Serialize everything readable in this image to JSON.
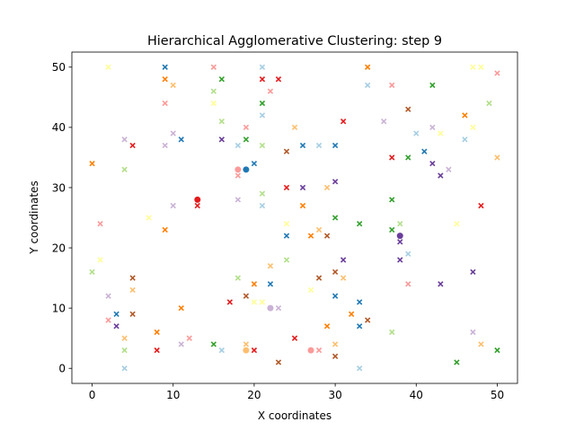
{
  "chart_data": {
    "type": "scatter",
    "title": "Hierarchical Agglomerative Clustering: step 9",
    "xlabel": "X coordinates",
    "ylabel": "Y coordinates",
    "xlim": [
      -2.5,
      52.5
    ],
    "ylim": [
      -2.5,
      52.5
    ],
    "xticks": [
      0,
      10,
      20,
      30,
      40,
      50
    ],
    "yticks": [
      0,
      10,
      20,
      30,
      40,
      50
    ],
    "grid": false,
    "legend": "none",
    "colors": {
      "blue": "#1f78b4",
      "lightblue": "#a6cee3",
      "green": "#33a02c",
      "lightgreen": "#b2df8a",
      "red": "#e31a1c",
      "pink": "#fb9a99",
      "orange": "#ff7f00",
      "lightorange": "#fdbf6f",
      "purple": "#6a3d9a",
      "lavender": "#cab2d6",
      "yellow": "#ffff99",
      "brown": "#b15928"
    },
    "cross_points": [
      {
        "x": 2,
        "y": 50,
        "c": "yellow"
      },
      {
        "x": 9,
        "y": 50,
        "c": "blue"
      },
      {
        "x": 15,
        "y": 50,
        "c": "pink"
      },
      {
        "x": 21,
        "y": 50,
        "c": "lightblue"
      },
      {
        "x": 34,
        "y": 50,
        "c": "orange"
      },
      {
        "x": 47,
        "y": 50,
        "c": "yellow"
      },
      {
        "x": 48,
        "y": 50,
        "c": "yellow"
      },
      {
        "x": 50,
        "y": 49,
        "c": "pink"
      },
      {
        "x": 9,
        "y": 48,
        "c": "orange"
      },
      {
        "x": 16,
        "y": 48,
        "c": "green"
      },
      {
        "x": 21,
        "y": 48,
        "c": "red"
      },
      {
        "x": 23,
        "y": 48,
        "c": "red"
      },
      {
        "x": 10,
        "y": 47,
        "c": "lightorange"
      },
      {
        "x": 34,
        "y": 47,
        "c": "lightblue"
      },
      {
        "x": 37,
        "y": 47,
        "c": "pink"
      },
      {
        "x": 42,
        "y": 47,
        "c": "green"
      },
      {
        "x": 15,
        "y": 46,
        "c": "lightgreen"
      },
      {
        "x": 22,
        "y": 46,
        "c": "pink"
      },
      {
        "x": 9,
        "y": 44,
        "c": "pink"
      },
      {
        "x": 15,
        "y": 44,
        "c": "yellow"
      },
      {
        "x": 21,
        "y": 44,
        "c": "green"
      },
      {
        "x": 49,
        "y": 44,
        "c": "lightgreen"
      },
      {
        "x": 39,
        "y": 43,
        "c": "brown"
      },
      {
        "x": 21,
        "y": 42,
        "c": "lightblue"
      },
      {
        "x": 46,
        "y": 42,
        "c": "orange"
      },
      {
        "x": 16,
        "y": 41,
        "c": "lightgreen"
      },
      {
        "x": 31,
        "y": 41,
        "c": "red"
      },
      {
        "x": 36,
        "y": 41,
        "c": "lavender"
      },
      {
        "x": 19,
        "y": 40,
        "c": "pink"
      },
      {
        "x": 25,
        "y": 40,
        "c": "lightorange"
      },
      {
        "x": 42,
        "y": 40,
        "c": "lavender"
      },
      {
        "x": 47,
        "y": 40,
        "c": "yellow"
      },
      {
        "x": 10,
        "y": 39,
        "c": "lavender"
      },
      {
        "x": 40,
        "y": 39,
        "c": "lightblue"
      },
      {
        "x": 43,
        "y": 39,
        "c": "yellow"
      },
      {
        "x": 4,
        "y": 38,
        "c": "lavender"
      },
      {
        "x": 11,
        "y": 38,
        "c": "blue"
      },
      {
        "x": 16,
        "y": 38,
        "c": "purple"
      },
      {
        "x": 19,
        "y": 38,
        "c": "green"
      },
      {
        "x": 46,
        "y": 38,
        "c": "lightblue"
      },
      {
        "x": 5,
        "y": 37,
        "c": "red"
      },
      {
        "x": 9,
        "y": 37,
        "c": "lavender"
      },
      {
        "x": 18,
        "y": 37,
        "c": "lightblue"
      },
      {
        "x": 21,
        "y": 37,
        "c": "lightgreen"
      },
      {
        "x": 26,
        "y": 37,
        "c": "blue"
      },
      {
        "x": 28,
        "y": 37,
        "c": "lightblue"
      },
      {
        "x": 30,
        "y": 37,
        "c": "blue"
      },
      {
        "x": 24,
        "y": 36,
        "c": "brown"
      },
      {
        "x": 41,
        "y": 36,
        "c": "blue"
      },
      {
        "x": 37,
        "y": 35,
        "c": "red"
      },
      {
        "x": 39,
        "y": 35,
        "c": "green"
      },
      {
        "x": 50,
        "y": 35,
        "c": "lightorange"
      },
      {
        "x": 0,
        "y": 34,
        "c": "orange"
      },
      {
        "x": 20,
        "y": 34,
        "c": "blue"
      },
      {
        "x": 42,
        "y": 34,
        "c": "purple"
      },
      {
        "x": 4,
        "y": 33,
        "c": "lightgreen"
      },
      {
        "x": 44,
        "y": 33,
        "c": "lavender"
      },
      {
        "x": 18,
        "y": 32,
        "c": "pink"
      },
      {
        "x": 43,
        "y": 32,
        "c": "purple"
      },
      {
        "x": 30,
        "y": 31,
        "c": "purple"
      },
      {
        "x": 24,
        "y": 30,
        "c": "red"
      },
      {
        "x": 26,
        "y": 30,
        "c": "purple"
      },
      {
        "x": 29,
        "y": 30,
        "c": "lightorange"
      },
      {
        "x": 21,
        "y": 29,
        "c": "lightgreen"
      },
      {
        "x": 18,
        "y": 28,
        "c": "lavender"
      },
      {
        "x": 37,
        "y": 28,
        "c": "green"
      },
      {
        "x": 10,
        "y": 27,
        "c": "lavender"
      },
      {
        "x": 13,
        "y": 27,
        "c": "red"
      },
      {
        "x": 21,
        "y": 27,
        "c": "lightblue"
      },
      {
        "x": 26,
        "y": 27,
        "c": "orange"
      },
      {
        "x": 48,
        "y": 27,
        "c": "red"
      },
      {
        "x": 7,
        "y": 25,
        "c": "yellow"
      },
      {
        "x": 30,
        "y": 25,
        "c": "green"
      },
      {
        "x": 1,
        "y": 24,
        "c": "pink"
      },
      {
        "x": 24,
        "y": 24,
        "c": "yellow"
      },
      {
        "x": 33,
        "y": 24,
        "c": "green"
      },
      {
        "x": 38,
        "y": 24,
        "c": "lightgreen"
      },
      {
        "x": 45,
        "y": 24,
        "c": "yellow"
      },
      {
        "x": 9,
        "y": 23,
        "c": "orange"
      },
      {
        "x": 28,
        "y": 23,
        "c": "lightorange"
      },
      {
        "x": 37,
        "y": 23,
        "c": "green"
      },
      {
        "x": 24,
        "y": 22,
        "c": "blue"
      },
      {
        "x": 27,
        "y": 22,
        "c": "orange"
      },
      {
        "x": 29,
        "y": 22,
        "c": "brown"
      },
      {
        "x": 38,
        "y": 21,
        "c": "purple"
      },
      {
        "x": 39,
        "y": 19,
        "c": "lightblue"
      },
      {
        "x": 1,
        "y": 18,
        "c": "yellow"
      },
      {
        "x": 24,
        "y": 18,
        "c": "lightgreen"
      },
      {
        "x": 31,
        "y": 18,
        "c": "purple"
      },
      {
        "x": 38,
        "y": 18,
        "c": "purple"
      },
      {
        "x": 22,
        "y": 17,
        "c": "lightorange"
      },
      {
        "x": 0,
        "y": 16,
        "c": "lightgreen"
      },
      {
        "x": 30,
        "y": 16,
        "c": "brown"
      },
      {
        "x": 47,
        "y": 16,
        "c": "purple"
      },
      {
        "x": 5,
        "y": 15,
        "c": "brown"
      },
      {
        "x": 18,
        "y": 15,
        "c": "lightgreen"
      },
      {
        "x": 28,
        "y": 15,
        "c": "brown"
      },
      {
        "x": 31,
        "y": 15,
        "c": "lightorange"
      },
      {
        "x": 20,
        "y": 14,
        "c": "orange"
      },
      {
        "x": 22,
        "y": 14,
        "c": "blue"
      },
      {
        "x": 39,
        "y": 14,
        "c": "pink"
      },
      {
        "x": 43,
        "y": 14,
        "c": "purple"
      },
      {
        "x": 5,
        "y": 13,
        "c": "lightorange"
      },
      {
        "x": 27,
        "y": 13,
        "c": "yellow"
      },
      {
        "x": 2,
        "y": 12,
        "c": "lavender"
      },
      {
        "x": 19,
        "y": 12,
        "c": "brown"
      },
      {
        "x": 30,
        "y": 12,
        "c": "blue"
      },
      {
        "x": 17,
        "y": 11,
        "c": "red"
      },
      {
        "x": 20,
        "y": 11,
        "c": "yellow"
      },
      {
        "x": 21,
        "y": 11,
        "c": "yellow"
      },
      {
        "x": 33,
        "y": 11,
        "c": "blue"
      },
      {
        "x": 11,
        "y": 10,
        "c": "orange"
      },
      {
        "x": 23,
        "y": 10,
        "c": "lavender"
      },
      {
        "x": 3,
        "y": 9,
        "c": "blue"
      },
      {
        "x": 5,
        "y": 9,
        "c": "brown"
      },
      {
        "x": 32,
        "y": 9,
        "c": "orange"
      },
      {
        "x": 2,
        "y": 8,
        "c": "pink"
      },
      {
        "x": 34,
        "y": 8,
        "c": "brown"
      },
      {
        "x": 3,
        "y": 7,
        "c": "purple"
      },
      {
        "x": 29,
        "y": 7,
        "c": "orange"
      },
      {
        "x": 33,
        "y": 7,
        "c": "blue"
      },
      {
        "x": 8,
        "y": 6,
        "c": "orange"
      },
      {
        "x": 37,
        "y": 6,
        "c": "lightgreen"
      },
      {
        "x": 47,
        "y": 6,
        "c": "lavender"
      },
      {
        "x": 4,
        "y": 5,
        "c": "lightorange"
      },
      {
        "x": 12,
        "y": 5,
        "c": "pink"
      },
      {
        "x": 25,
        "y": 5,
        "c": "red"
      },
      {
        "x": 11,
        "y": 4,
        "c": "lavender"
      },
      {
        "x": 15,
        "y": 4,
        "c": "green"
      },
      {
        "x": 19,
        "y": 4,
        "c": "lightorange"
      },
      {
        "x": 30,
        "y": 4,
        "c": "lightorange"
      },
      {
        "x": 48,
        "y": 4,
        "c": "lightorange"
      },
      {
        "x": 4,
        "y": 3,
        "c": "lightgreen"
      },
      {
        "x": 8,
        "y": 3,
        "c": "red"
      },
      {
        "x": 16,
        "y": 3,
        "c": "lightblue"
      },
      {
        "x": 20,
        "y": 3,
        "c": "red"
      },
      {
        "x": 28,
        "y": 3,
        "c": "pink"
      },
      {
        "x": 50,
        "y": 3,
        "c": "green"
      },
      {
        "x": 30,
        "y": 2,
        "c": "brown"
      },
      {
        "x": 23,
        "y": 1,
        "c": "brown"
      },
      {
        "x": 45,
        "y": 1,
        "c": "green"
      },
      {
        "x": 4,
        "y": 0,
        "c": "lightblue"
      },
      {
        "x": 33,
        "y": 0,
        "c": "lightblue"
      }
    ],
    "dot_points": [
      {
        "x": 13,
        "y": 28,
        "c": "red"
      },
      {
        "x": 18,
        "y": 33,
        "c": "pink"
      },
      {
        "x": 19,
        "y": 33,
        "c": "blue"
      },
      {
        "x": 38,
        "y": 22,
        "c": "purple"
      },
      {
        "x": 22,
        "y": 10,
        "c": "lavender"
      },
      {
        "x": 27,
        "y": 3,
        "c": "pink"
      },
      {
        "x": 19,
        "y": 3,
        "c": "lightorange"
      }
    ]
  }
}
